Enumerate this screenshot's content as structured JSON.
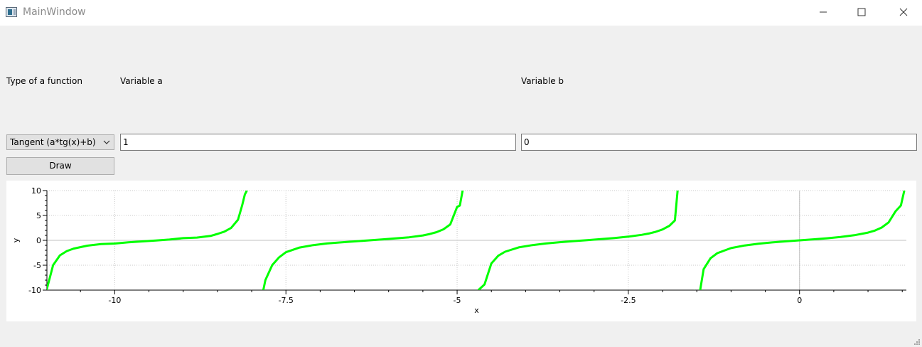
{
  "window": {
    "title": "MainWindow"
  },
  "form": {
    "function_type_label": "Type of a function",
    "variable_a_label": "Variable a",
    "variable_b_label": "Variable b",
    "function_type_value": "Tangent (a*tg(x)+b)",
    "variable_a_value": "1",
    "variable_b_value": "0",
    "draw_label": "Draw"
  },
  "chart_data": {
    "type": "line",
    "function": "a*tg(x)+b",
    "a": 1,
    "b": 0,
    "xlabel": "x",
    "ylabel": "y",
    "xlim": [
      -10.99,
      1.56
    ],
    "ylim": [
      -10,
      10
    ],
    "x_ticks": [
      -10,
      -7.5,
      -5,
      -2.5,
      0
    ],
    "x_tick_labels": [
      "-10",
      "-7.5",
      "-5",
      "-2.5",
      "0"
    ],
    "y_ticks": [
      10,
      5,
      0,
      -5,
      -10
    ],
    "y_tick_labels": [
      "10",
      "5",
      "0",
      "-5",
      "-10"
    ],
    "grid": true,
    "series": [
      {
        "color": "#00ff00",
        "segments": [
          {
            "x": [
              -10.995,
              -10.9,
              -10.8,
              -10.7,
              -10.6,
              -10.4,
              -10.2,
              -10.0,
              -9.8,
              -9.6,
              -9.4,
              -9.2,
              -9.0,
              -8.8,
              -8.6,
              -8.5,
              -8.4,
              -8.3,
              -8.2,
              -8.14,
              -8.1,
              -8.07
            ],
            "y": [
              -10,
              -4.98,
              -3.02,
              -2.15,
              -1.65,
              -1.07,
              -0.76,
              -0.65,
              -0.4,
              -0.21,
              -0.03,
              0.15,
              0.45,
              0.56,
              0.89,
              1.28,
              1.74,
              2.49,
              4.14,
              7.0,
              9.2,
              10
            ]
          },
          {
            "x": [
              -7.83,
              -7.8,
              -7.7,
              -7.6,
              -7.5,
              -7.3,
              -7.1,
              -6.9,
              -6.7,
              -6.5,
              -6.3,
              -6.1,
              -5.9,
              -5.7,
              -5.5,
              -5.4,
              -5.3,
              -5.2,
              -5.1,
              -5.0,
              -4.96,
              -4.92
            ],
            "y": [
              -10,
              -8.0,
              -4.98,
              -3.42,
              -2.39,
              -1.45,
              -0.96,
              -0.63,
              -0.41,
              -0.22,
              -0.02,
              0.18,
              0.39,
              0.62,
              0.99,
              1.27,
              1.65,
              2.21,
              3.2,
              6.7,
              7.0,
              10
            ]
          },
          {
            "x": [
              -4.69,
              -4.6,
              -4.5,
              -4.4,
              -4.3,
              -4.1,
              -3.9,
              -3.7,
              -3.5,
              -3.3,
              -3.1,
              -2.9,
              -2.7,
              -2.5,
              -2.3,
              -2.2,
              -2.1,
              -2.0,
              -1.9,
              -1.82,
              -1.78
            ],
            "y": [
              -10,
              -8.86,
              -4.64,
              -3.1,
              -2.28,
              -1.42,
              -0.96,
              -0.63,
              -0.37,
              -0.16,
              0.04,
              0.24,
              0.47,
              0.75,
              1.12,
              1.37,
              1.71,
              2.19,
              2.93,
              4.0,
              10
            ]
          },
          {
            "x": [
              -1.55,
              -1.5,
              -1.4,
              -1.3,
              -1.2,
              -1.0,
              -0.8,
              -0.6,
              -0.4,
              -0.2,
              0.0,
              0.2,
              0.4,
              0.6,
              0.8,
              1.0,
              1.1,
              1.2,
              1.3,
              1.4,
              1.48,
              1.53
            ],
            "y": [
              -10,
              -14.1,
              -5.8,
              -3.6,
              -2.57,
              -1.56,
              -1.03,
              -0.68,
              -0.42,
              -0.2,
              0.0,
              0.2,
              0.42,
              0.68,
              1.03,
              1.56,
              1.96,
              2.57,
              3.6,
              5.8,
              7.0,
              10
            ]
          }
        ]
      }
    ]
  }
}
